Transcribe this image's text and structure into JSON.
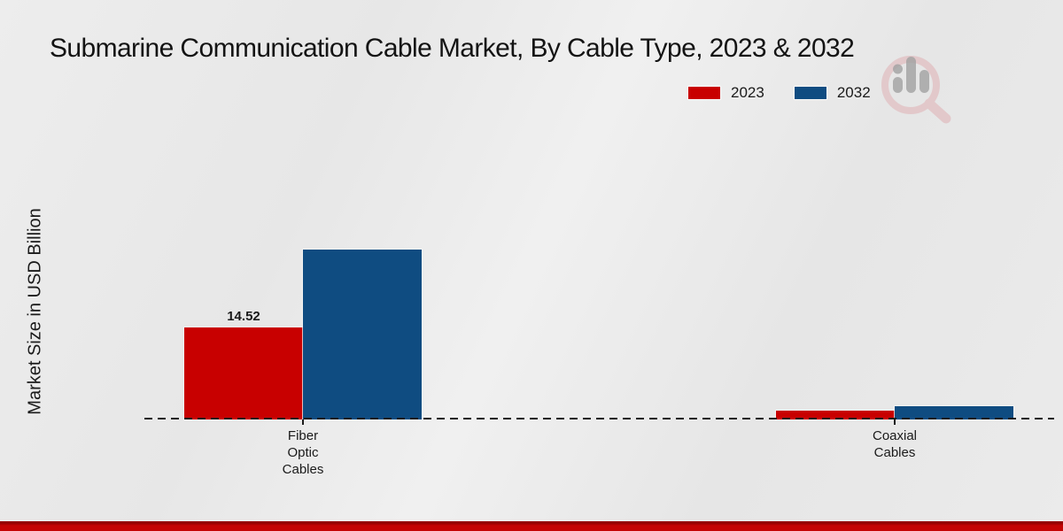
{
  "page": {
    "background_color": "#e9e9e9",
    "footer_accent_color": "#c40404",
    "text_color": "#1a1a1a"
  },
  "watermark": {
    "icon": "magnifier-bar-chart-logo",
    "ring_color": "#dfb0b4",
    "bars_color": "#a2a2a2"
  },
  "chart_data": {
    "type": "bar",
    "title": "Submarine Communication Cable Market, By Cable Type, 2023 & 2032",
    "ylabel": "Market Size in USD Billion",
    "xlabel": "",
    "categories": [
      "Fiber Optic Cables",
      "Coaxial Cables"
    ],
    "category_lines": [
      [
        "Fiber",
        "Optic",
        "Cables"
      ],
      [
        "Coaxial",
        "Cables"
      ]
    ],
    "series": [
      {
        "name": "2023",
        "color": "#c80000",
        "values": [
          14.52,
          1.4
        ]
      },
      {
        "name": "2032",
        "color": "#0f4c81",
        "values": [
          26.8,
          2.1
        ]
      }
    ],
    "value_labels": [
      {
        "series_index": 0,
        "category_index": 0,
        "text": "14.52"
      }
    ],
    "ylim": [
      0,
      30
    ],
    "grid": false,
    "baseline_style": "dashed",
    "legend_position": "top-right"
  }
}
